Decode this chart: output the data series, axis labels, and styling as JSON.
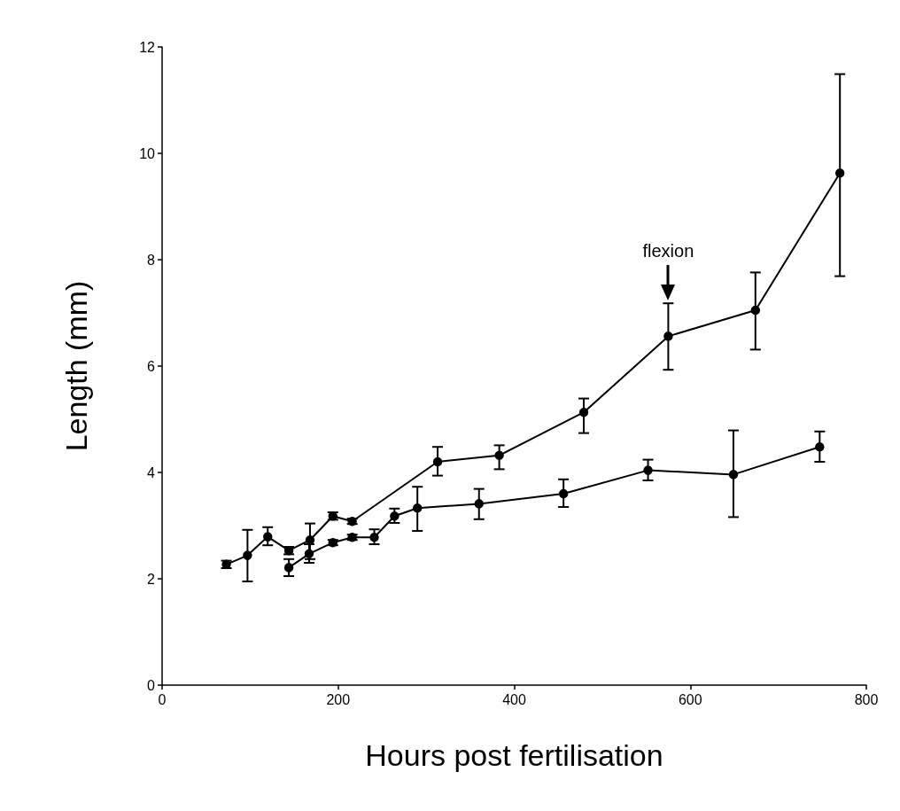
{
  "chart_data": {
    "type": "line",
    "xlabel": "Hours post fertilisation",
    "ylabel": "Length (mm)",
    "xlim": [
      0,
      800
    ],
    "xticks": [
      0,
      200,
      400,
      600,
      800
    ],
    "ylim": [
      0,
      12
    ],
    "yticks": [
      0,
      2,
      4,
      6,
      8,
      10,
      12
    ],
    "grid": false,
    "marker": "circle",
    "line_style": "solid",
    "annotations": [
      {
        "text": "flexion",
        "x": 575,
        "y": 7.2
      }
    ],
    "series": [
      {
        "color": "#000000",
        "x": [
          73,
          97,
          120,
          144,
          168,
          194,
          216,
          313,
          383,
          479,
          575,
          674,
          770
        ],
        "values": [
          2.27,
          2.44,
          2.79,
          2.53,
          2.73,
          3.18,
          3.08,
          4.2,
          4.32,
          5.13,
          6.56,
          7.05,
          9.63
        ],
        "errors": [
          0.07,
          [
            1.95,
            2.92
          ],
          [
            2.63,
            2.97
          ],
          0.07,
          [
            2.37,
            3.04
          ],
          0.07,
          0.05,
          [
            3.94,
            4.48
          ],
          [
            4.06,
            4.51
          ],
          [
            4.74,
            5.39
          ],
          [
            5.93,
            7.18
          ],
          [
            6.31,
            7.76
          ],
          [
            7.69,
            11.49
          ]
        ]
      },
      {
        "color": "#000000",
        "x": [
          144,
          167,
          194,
          216,
          241,
          264,
          290,
          360,
          456,
          552,
          649,
          747
        ],
        "values": [
          2.21,
          2.47,
          2.68,
          2.78,
          2.78,
          3.18,
          3.33,
          3.41,
          3.6,
          4.04,
          3.96,
          4.48
        ],
        "errors": [
          [
            2.05,
            2.37
          ],
          [
            2.3,
            2.65
          ],
          0.05,
          0.05,
          [
            2.65,
            2.93
          ],
          [
            3.05,
            3.32
          ],
          [
            2.9,
            3.73
          ],
          [
            3.12,
            3.69
          ],
          [
            3.35,
            3.87
          ],
          [
            3.85,
            4.24
          ],
          [
            3.16,
            4.79
          ],
          [
            4.2,
            4.77
          ]
        ]
      }
    ]
  }
}
